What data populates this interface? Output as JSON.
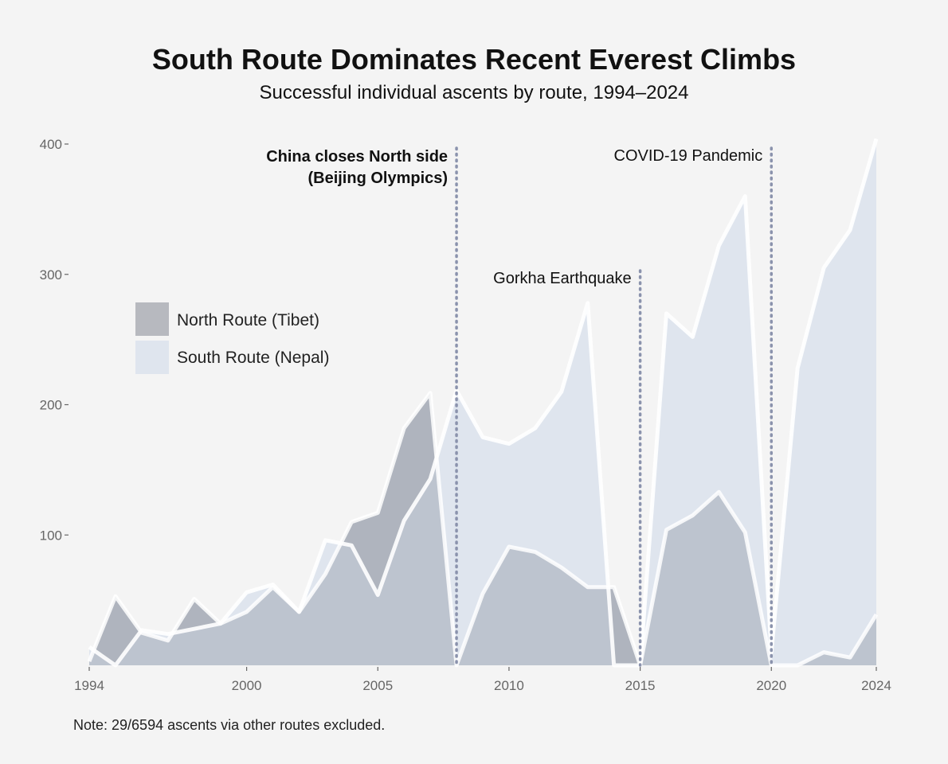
{
  "chart_data": {
    "type": "area",
    "title": "South Route Dominates Recent Everest Climbs",
    "subtitle": "Successful individual ascents by route, 1994–2024",
    "note": "Note: 29/6594 ascents via other routes excluded.",
    "xlim": [
      1994,
      2024
    ],
    "ylim": [
      0,
      400
    ],
    "x_ticks": [
      1994,
      2000,
      2005,
      2010,
      2015,
      2020,
      2024
    ],
    "y_ticks": [
      100,
      200,
      300,
      400
    ],
    "x": [
      1994,
      1995,
      1996,
      1997,
      1998,
      1999,
      2000,
      2001,
      2002,
      2003,
      2004,
      2005,
      2006,
      2007,
      2008,
      2009,
      2010,
      2011,
      2012,
      2013,
      2014,
      2015,
      2016,
      2017,
      2018,
      2019,
      2020,
      2021,
      2022,
      2023,
      2024
    ],
    "series": [
      {
        "name": "North Route (Tibet)",
        "color": "#b7b9bf",
        "values": [
          3,
          53,
          25,
          19,
          51,
          32,
          41,
          60,
          41,
          70,
          110,
          117,
          182,
          209,
          0,
          55,
          91,
          87,
          75,
          60,
          60,
          0,
          104,
          115,
          133,
          102,
          0,
          0,
          10,
          6,
          39
        ]
      },
      {
        "name": "South Route (Nepal)",
        "color": "#dfe5ee",
        "values": [
          14,
          0,
          27,
          24,
          28,
          32,
          56,
          62,
          41,
          96,
          92,
          54,
          111,
          143,
          211,
          175,
          170,
          182,
          210,
          278,
          0,
          0,
          270,
          252,
          322,
          360,
          10,
          228,
          305,
          334,
          404
        ]
      }
    ],
    "legend_position": "top-left",
    "grid": false,
    "annotations": [
      {
        "x": 2008,
        "label_lines": [
          "China closes North side",
          "(Beijing Olympics)"
        ],
        "bold": true
      },
      {
        "x": 2015,
        "label_lines": [
          "Gorkha Earthquake"
        ],
        "bold": false
      },
      {
        "x": 2020,
        "label_lines": [
          "COVID-19 Pandemic"
        ],
        "bold": false
      }
    ]
  }
}
